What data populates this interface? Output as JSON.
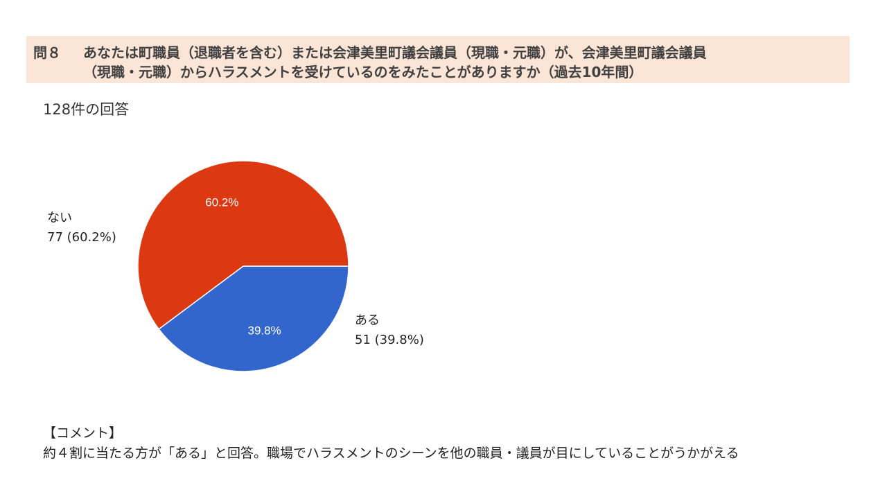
{
  "question": {
    "label": "問８",
    "line1": "あなたは町職員（退職者を含む）または会津美里町議会議員（現職・元職）が、会津美里町議会議員",
    "line2": "（現職・元職）からハラスメントを受けているのをみたことがありますか（過去10年間）"
  },
  "response_count": "128件の回答",
  "chart_data": {
    "type": "pie",
    "total": 128,
    "slices": [
      {
        "name": "ない",
        "count": 77,
        "percent": 60.2,
        "value_label": "77 (60.2%)",
        "pct_label": "60.2%",
        "color": "#dc3912"
      },
      {
        "name": "ある",
        "count": 51,
        "percent": 39.8,
        "value_label": "51 (39.8%)",
        "pct_label": "39.8%",
        "color": "#3366cc"
      }
    ]
  },
  "comment": {
    "header": "【コメント】",
    "body": "約４割に当たる方が「ある」と回答。職場でハラスメントのシーンを他の職員・議員が目にしていることがうかがえる"
  }
}
